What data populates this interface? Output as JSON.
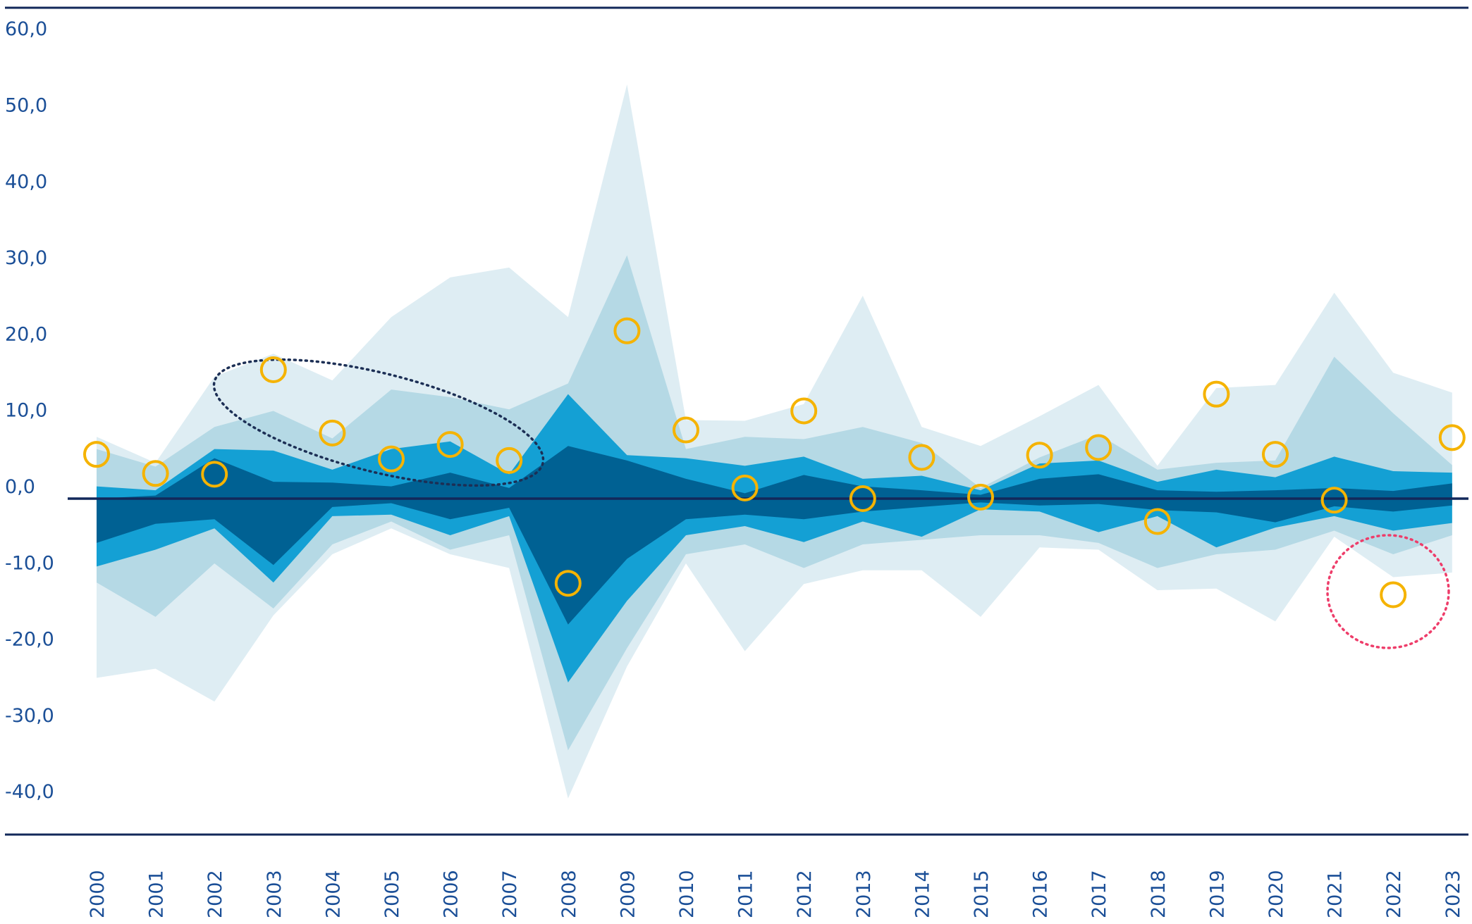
{
  "chart_data": {
    "type": "area",
    "title": "",
    "xlabel": "",
    "ylabel": "",
    "ylim": [
      -40,
      60
    ],
    "yticks": [
      "60,0",
      "50,0",
      "40,0",
      "30,0",
      "20,0",
      "10,0",
      "0,0",
      "-10,0",
      "-20,0",
      "-30,0",
      "-40,0"
    ],
    "ytick_values": [
      60,
      50,
      40,
      30,
      20,
      10,
      0,
      -10,
      -20,
      -30,
      -40
    ],
    "grid": false,
    "legend": "none",
    "categories": [
      "2000",
      "2001",
      "2002",
      "2003",
      "2004",
      "2005",
      "2006",
      "2007",
      "2008",
      "2009",
      "2010",
      "2011",
      "2012",
      "2013",
      "2014",
      "2015",
      "2016",
      "2017",
      "2018",
      "2019",
      "2020",
      "2021",
      "2022",
      "2023"
    ],
    "bands": [
      {
        "color": "#deedf3",
        "upper": [
          8.1,
          4.7,
          16,
          19,
          15.5,
          23.8,
          29,
          30.3,
          23.8,
          54.3,
          10.3,
          10.2,
          12.4,
          26.6,
          9.4,
          6.9,
          10.8,
          14.9,
          4.3,
          14.5,
          14.9,
          27,
          16.5,
          13.9
        ],
        "lower": [
          -23.5,
          -22.3,
          -26.6,
          -15.3,
          -7.3,
          -3.9,
          -7.3,
          -9.1,
          -39.3,
          -22,
          -8.5,
          -20,
          -11.2,
          -9.4,
          -9.4,
          -15.5,
          -6.4,
          -6.7,
          -12,
          -11.8,
          -16.1,
          -5,
          -10.3,
          -9.7
        ]
      },
      {
        "color": "#b5d9e5",
        "upper": [
          6.5,
          4.2,
          9.4,
          11.5,
          7.9,
          14.3,
          13.3,
          11.7,
          15.1,
          31.9,
          6.5,
          8.1,
          7.8,
          9.4,
          7.3,
          1.4,
          5.4,
          8.4,
          3.8,
          4.7,
          5,
          18.6,
          11.2,
          4.4
        ],
        "lower": [
          -11,
          -15.5,
          -8.5,
          -14.4,
          -6,
          -3,
          -6.7,
          -4.8,
          -33,
          -19.6,
          -7.3,
          -6,
          -9.1,
          -6,
          -5.4,
          -4.8,
          -4.8,
          -5.8,
          -9.1,
          -7.3,
          -6.7,
          -4.2,
          -7.3,
          -4.8
        ]
      },
      {
        "color": "#14a0d4",
        "upper": [
          1.6,
          1.1,
          6.5,
          6.3,
          3.8,
          6.5,
          7.5,
          3.2,
          13.7,
          5.7,
          5.3,
          4.3,
          5.5,
          2.6,
          3,
          1.1,
          4.6,
          5,
          2.2,
          3.8,
          2.8,
          5.5,
          3.6,
          3.4
        ],
        "lower": [
          -8.9,
          -6.7,
          -3.9,
          -11,
          -2.3,
          -2.1,
          -4.8,
          -2.3,
          -24.1,
          -13.4,
          -4.8,
          -3.6,
          -5.7,
          -3,
          -5,
          -1.4,
          -1.7,
          -4.4,
          -2.3,
          -6.4,
          -3.8,
          -2.3,
          -4.2,
          -3.2
        ]
      },
      {
        "color": "#006193",
        "upper": [
          0,
          0.4,
          5.3,
          2.2,
          2.1,
          1.6,
          3.4,
          1.4,
          6.9,
          5,
          2.6,
          0.7,
          3.1,
          1.6,
          1.1,
          0.5,
          2.6,
          3.2,
          1.1,
          0.9,
          1.1,
          1.4,
          1,
          2
        ],
        "lower": [
          -5.8,
          -3.3,
          -2.7,
          -8.7,
          -1.1,
          -0.6,
          -2.7,
          -1.2,
          -16.5,
          -7.9,
          -2.7,
          -2.1,
          -2.7,
          -1.7,
          -1.1,
          -0.5,
          -0.9,
          -0.7,
          -1.5,
          -1.8,
          -3.1,
          -1,
          -1.7,
          -0.9
        ]
      }
    ],
    "points": {
      "color": "#f5b300",
      "values": [
        5.8,
        3.3,
        3.2,
        16.9,
        8.6,
        5.2,
        7.1,
        5,
        -11.1,
        22,
        9,
        1.4,
        11.5,
        0,
        5.4,
        0.2,
        5.7,
        6.7,
        -3,
        13.7,
        5.8,
        -0.2,
        -12.6,
        8
      ]
    },
    "annotations": [
      {
        "shape": "dotted-ellipse",
        "color": "#1c2f55",
        "highlights": [
          "2003",
          "2004",
          "2005",
          "2006",
          "2007"
        ]
      },
      {
        "shape": "dotted-circle",
        "color": "#ee3d6a",
        "highlights": [
          "2022"
        ]
      }
    ],
    "axis_color": "#12285a"
  }
}
